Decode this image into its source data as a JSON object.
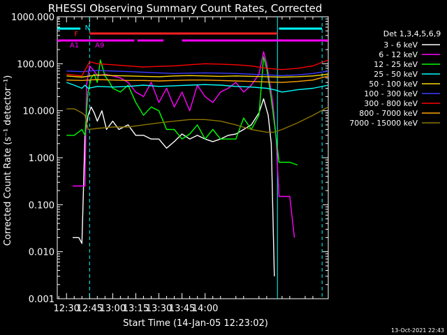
{
  "chart_data": {
    "type": "line",
    "title": "RHESSI Observing Summary Count Rates, Corrected",
    "ylabel": "Corrected Count Rate (s⁻¹ detector⁻¹)",
    "xlabel": "Start Time (14-Jan-05 12:23:02)",
    "yscale": "log",
    "ylim": [
      0.001,
      1000
    ],
    "y_ticks": [
      "0.001",
      "0.010",
      "0.100",
      "1.000",
      "10.000",
      "100.000",
      "1000.000"
    ],
    "x_ticks": [
      "12:30",
      "12:45",
      "13:00",
      "13:15",
      "13:30",
      "13:45",
      "14:00"
    ],
    "x_range_min": [
      -6,
      170
    ],
    "legend_title": "Det 1,3,4,5,6,9",
    "legend_position": "right",
    "timestamp": "13-Oct-2021 22:43",
    "flag_bars": [
      {
        "label": "N",
        "color": "#00ffff",
        "segments": [
          [
            -6,
            9
          ],
          [
            138,
            166
          ]
        ]
      },
      {
        "label": "F",
        "color": "#ff2020",
        "segments": [
          [
            15,
            137
          ]
        ]
      },
      {
        "label": "A1",
        "color": "#ff00ff",
        "segments": [
          [
            -6,
            22
          ],
          [
            42,
            44
          ],
          [
            46,
            63
          ],
          [
            75,
            170
          ]
        ]
      },
      {
        "label": "A9",
        "color": "#ff00ff",
        "segments": [
          [
            22,
            42
          ]
        ]
      }
    ],
    "attenuator_markers": [
      {
        "label": "A1",
        "x": 13
      },
      {
        "label": "A9",
        "x": 24
      }
    ],
    "series": [
      {
        "name": "3 - 6 keV",
        "color": "#ffffff",
        "x": [
          4,
          5,
          8,
          10,
          12,
          14,
          16,
          18,
          20,
          23,
          26,
          30,
          34,
          40,
          45,
          50,
          55,
          60,
          65,
          70,
          75,
          80,
          85,
          90,
          95,
          100,
          105,
          110,
          115,
          120,
          125,
          128,
          131,
          133,
          135
        ],
        "y": [
          0.02,
          0.02,
          0.02,
          0.015,
          3,
          8,
          12,
          9,
          6,
          10,
          4,
          6,
          4,
          5,
          3,
          3,
          2.5,
          2.5,
          1.6,
          2.2,
          3.2,
          2.5,
          3,
          2.5,
          2.2,
          2.5,
          3,
          3.2,
          4,
          5,
          9,
          18,
          8,
          2,
          0.003
        ]
      },
      {
        "name": "6 - 12 keV",
        "color": "#ff00ff",
        "x": [
          4,
          7,
          10,
          12,
          13,
          15,
          18,
          20,
          25,
          30,
          35,
          40,
          45,
          50,
          55,
          60,
          65,
          70,
          75,
          80,
          85,
          90,
          95,
          100,
          105,
          110,
          115,
          120,
          125,
          128,
          130,
          132,
          134,
          136,
          138,
          140,
          142,
          145,
          148
        ],
        "y": [
          0.25,
          0.25,
          0.25,
          0.25,
          35,
          90,
          70,
          55,
          60,
          55,
          50,
          40,
          25,
          20,
          40,
          15,
          30,
          12,
          25,
          10,
          35,
          20,
          15,
          25,
          30,
          40,
          25,
          35,
          60,
          180,
          100,
          40,
          15,
          3,
          0.15,
          0.15,
          0.15,
          0.15,
          0.02
        ]
      },
      {
        "name": "12 - 25 keV",
        "color": "#00ff00",
        "x": [
          0,
          5,
          10,
          12,
          13,
          14,
          16,
          18,
          20,
          22,
          25,
          28,
          30,
          35,
          40,
          45,
          50,
          55,
          60,
          65,
          70,
          75,
          80,
          85,
          90,
          95,
          100,
          105,
          110,
          115,
          120,
          125,
          128,
          130,
          132,
          134,
          136,
          138,
          140,
          145,
          150
        ],
        "y": [
          3,
          3,
          4,
          3,
          10,
          25,
          50,
          60,
          40,
          120,
          55,
          40,
          30,
          25,
          35,
          15,
          8,
          12,
          10,
          4,
          4,
          2.5,
          3.2,
          5,
          2.5,
          4,
          2.5,
          2.5,
          2.5,
          7,
          4,
          8,
          140,
          80,
          30,
          10,
          3,
          0.8,
          0.8,
          0.8,
          0.7
        ]
      },
      {
        "name": "25 - 50 keV",
        "color": "#00ffff",
        "x": [
          0,
          5,
          10,
          12,
          14,
          20,
          30,
          40,
          50,
          60,
          70,
          80,
          90,
          100,
          110,
          120,
          130,
          135,
          140,
          150,
          160,
          170
        ],
        "y": [
          40,
          35,
          30,
          35,
          30,
          33,
          32,
          33,
          35,
          33,
          34,
          35,
          36,
          35,
          33,
          32,
          30,
          28,
          25,
          28,
          30,
          35
        ]
      },
      {
        "name": "50 - 100 keV",
        "color": "#ffd700",
        "x": [
          0,
          10,
          20,
          30,
          40,
          50,
          60,
          70,
          80,
          90,
          100,
          110,
          120,
          130,
          140,
          150,
          160,
          170
        ],
        "y": [
          55,
          52,
          58,
          56,
          55,
          54,
          53,
          55,
          56,
          55,
          54,
          55,
          54,
          53,
          52,
          53,
          55,
          60
        ]
      },
      {
        "name": "100 - 300 keV",
        "color": "#3c3cff",
        "x": [
          0,
          10,
          20,
          30,
          40,
          50,
          60,
          70,
          80,
          90,
          100,
          110,
          120,
          130,
          140,
          150,
          160,
          170
        ],
        "y": [
          70,
          68,
          72,
          70,
          68,
          66,
          64,
          62,
          63,
          64,
          63,
          62,
          60,
          58,
          56,
          58,
          62,
          70
        ]
      },
      {
        "name": "300 - 800 keV",
        "color": "#ff0000",
        "x": [
          0,
          10,
          15,
          20,
          30,
          40,
          50,
          60,
          70,
          80,
          90,
          100,
          110,
          120,
          130,
          140,
          150,
          160,
          170
        ],
        "y": [
          60,
          55,
          110,
          100,
          95,
          90,
          85,
          88,
          90,
          95,
          100,
          98,
          95,
          90,
          80,
          75,
          80,
          90,
          120
        ]
      },
      {
        "name": "800 - 7000 keV",
        "color": "#ffa500",
        "x": [
          0,
          10,
          20,
          30,
          40,
          50,
          60,
          70,
          80,
          90,
          100,
          110,
          120,
          130,
          140,
          150,
          160,
          170
        ],
        "y": [
          45,
          44,
          46,
          45,
          44,
          44,
          43,
          44,
          45,
          45,
          44,
          43,
          42,
          41,
          40,
          42,
          45,
          55
        ]
      },
      {
        "name": "7000 - 15000 keV",
        "color": "#8b7500",
        "x": [
          0,
          5,
          10,
          12,
          14,
          20,
          30,
          40,
          50,
          60,
          70,
          80,
          90,
          100,
          110,
          120,
          130,
          135,
          140,
          150,
          160,
          170
        ],
        "y": [
          11,
          11,
          9,
          8,
          4,
          4.2,
          4.5,
          4.5,
          5,
          5.5,
          6,
          6.5,
          6.5,
          6,
          5,
          4,
          3.5,
          3.5,
          4,
          5.5,
          8,
          12
        ]
      }
    ],
    "intervals": [
      {
        "x": 15,
        "style": "dashed",
        "color": "#00ffff"
      },
      {
        "x": 137,
        "style": "solid",
        "color": "#00ffff"
      },
      {
        "x": 166,
        "style": "dashed",
        "color": "#00ffff"
      }
    ]
  }
}
